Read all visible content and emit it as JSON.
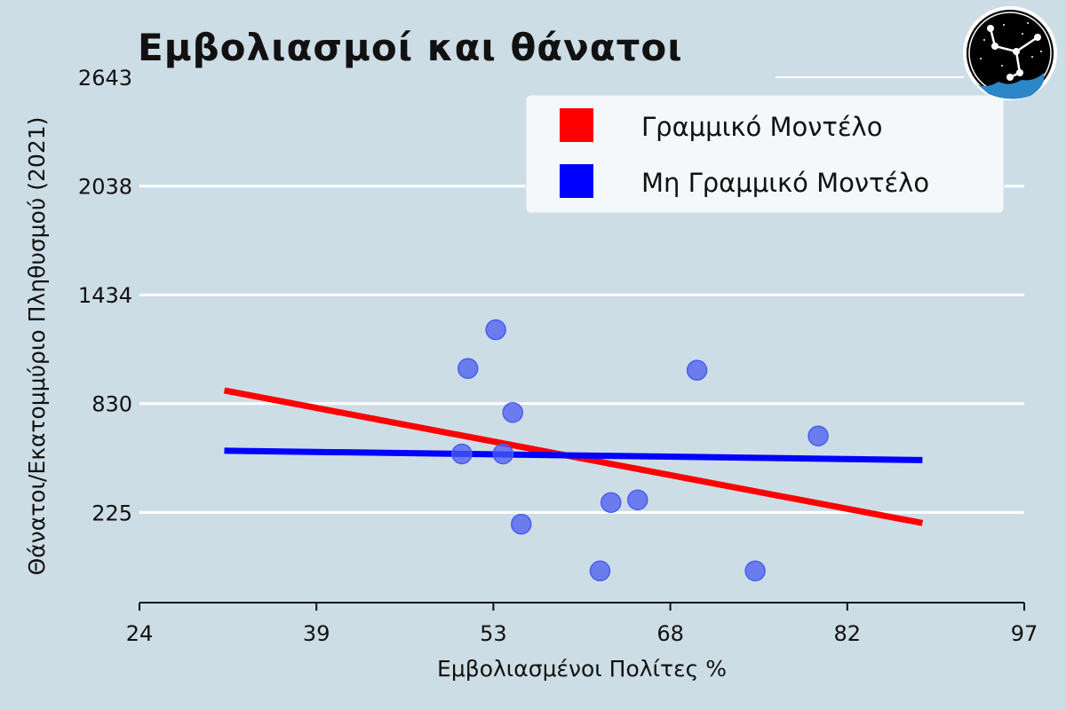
{
  "chart_data": {
    "type": "scatter",
    "title": "Εμβολιασμοί και θάνατοι",
    "xlabel": "Εμβολιασμένοι Πολίτες %",
    "ylabel": "Θάνατοι/Εκατομμύριο Πληθυσμού (2021)",
    "xlim": [
      24,
      97
    ],
    "ylim": [
      -276,
      2643
    ],
    "x_ticks": [
      "24",
      "39",
      "53",
      "68",
      "82",
      "97"
    ],
    "x_tick_values": [
      24,
      38.6,
      53.2,
      67.8,
      82.4,
      97
    ],
    "y_ticks": [
      "225",
      "830",
      "1434",
      "2038",
      "2643"
    ],
    "y_tick_values": [
      225,
      830,
      1434,
      2038,
      2643
    ],
    "grid": "horizontal",
    "legend_position": "top-right",
    "points": {
      "color": "#4a5cf0",
      "x": [
        50.6,
        51.1,
        53.4,
        54.0,
        54.8,
        55.5,
        62.0,
        62.9,
        65.1,
        70.0,
        74.8,
        80.0
      ],
      "y": [
        550,
        1025,
        1240,
        550,
        780,
        160,
        -100,
        280,
        295,
        1015,
        -100,
        650
      ]
    },
    "series": [
      {
        "name": "Γραμμικό Μοντέλο",
        "color": "#ff0000",
        "type": "line",
        "x": [
          31,
          88.6
        ],
        "y": [
          903,
          166
        ]
      },
      {
        "name": "Μη Γραμμικό Μοντέλο",
        "color": "#0000ff",
        "type": "line",
        "x": [
          31,
          88.6
        ],
        "y": [
          568,
          516
        ]
      }
    ]
  }
}
